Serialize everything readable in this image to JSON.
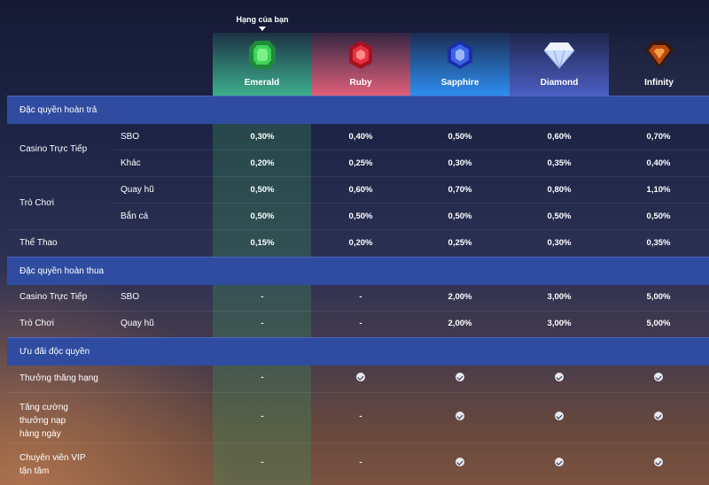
{
  "header": {
    "your_rank_label": "Hạng của bạn",
    "tiers": [
      {
        "name": "Emerald",
        "color": "#3cae8a",
        "icon": "emerald-gem-icon"
      },
      {
        "name": "Ruby",
        "color": "#e05f78",
        "icon": "ruby-gem-icon"
      },
      {
        "name": "Sapphire",
        "color": "#2d8ef0",
        "icon": "sapphire-gem-icon"
      },
      {
        "name": "Diamond",
        "color": "#4b5ec2",
        "icon": "diamond-gem-icon"
      },
      {
        "name": "Infinity",
        "color": "#232a47",
        "icon": "infinity-gem-icon"
      }
    ]
  },
  "sections": {
    "rebate": {
      "title": "Đặc quyền hoàn trả",
      "rows": [
        {
          "group": "Casino Trực Tiếp",
          "sub": "SBO",
          "values": [
            "0,30%",
            "0,40%",
            "0,50%",
            "0,60%",
            "0,70%"
          ]
        },
        {
          "group": "",
          "sub": "Khác",
          "values": [
            "0,20%",
            "0,25%",
            "0,30%",
            "0,35%",
            "0,40%"
          ]
        },
        {
          "group": "Trò Chơi",
          "sub": "Quay hũ",
          "values": [
            "0,50%",
            "0,60%",
            "0,70%",
            "0,80%",
            "1,10%"
          ]
        },
        {
          "group": "",
          "sub": "Bắn cá",
          "values": [
            "0,50%",
            "0,50%",
            "0,50%",
            "0,50%",
            "0,50%"
          ]
        },
        {
          "group": "Thể Thao",
          "sub": "",
          "values": [
            "0,15%",
            "0,20%",
            "0,25%",
            "0,30%",
            "0,35%"
          ]
        }
      ]
    },
    "lossback": {
      "title": "Đặc quyền hoàn thua",
      "rows": [
        {
          "group": "Casino Trực Tiếp",
          "sub": "SBO",
          "values": [
            "-",
            "-",
            "2,00%",
            "3,00%",
            "5,00%"
          ]
        },
        {
          "group": "Trò Chơi",
          "sub": "Quay hũ",
          "values": [
            "-",
            "-",
            "2,00%",
            "3,00%",
            "5,00%"
          ]
        }
      ]
    },
    "exclusive": {
      "title": "Ưu đãi độc quyền",
      "rows": [
        {
          "label": "Thưởng thăng hạng",
          "values": [
            "-",
            "check",
            "check",
            "check",
            "check"
          ]
        },
        {
          "label_lines": [
            "Tăng cường",
            "thưởng nạp",
            "hàng ngày"
          ],
          "values": [
            "-",
            "-",
            "check",
            "check",
            "check"
          ]
        },
        {
          "label_lines": [
            "Chuyên viên VIP",
            "tận tâm"
          ],
          "values": [
            "-",
            "-",
            "check",
            "check",
            "check"
          ]
        }
      ]
    }
  }
}
